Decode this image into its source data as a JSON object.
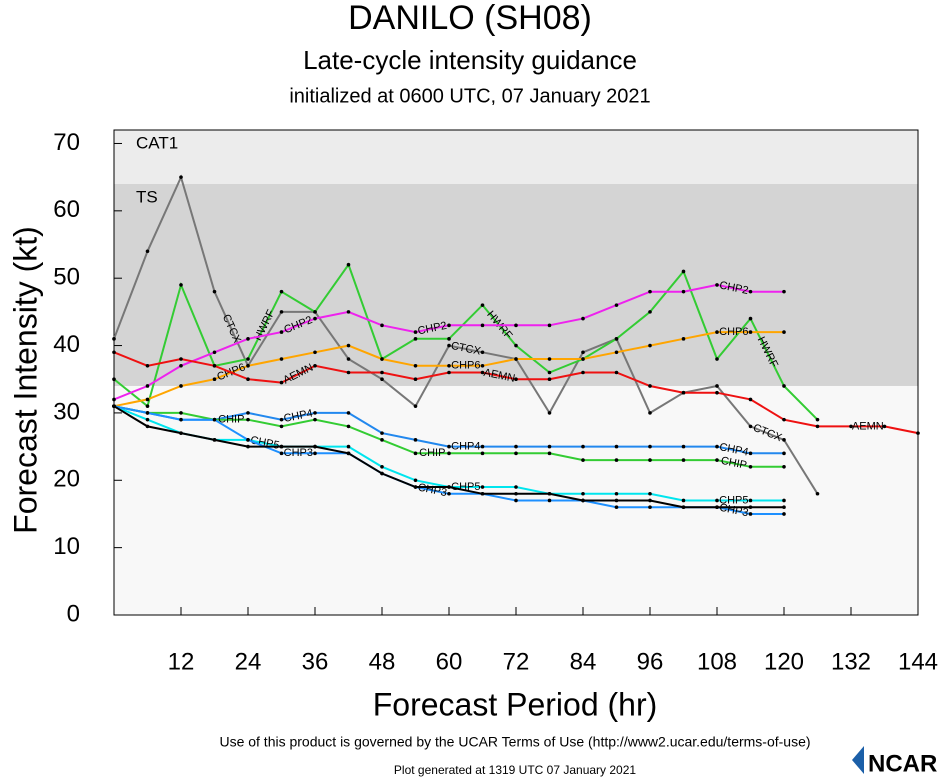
{
  "chart_data": {
    "type": "line",
    "title": "DANILO (SH08)",
    "subtitle": "Late-cycle intensity guidance",
    "initialized": "initialized at 0600 UTC, 07 January 2021",
    "xlabel": "Forecast Period (hr)",
    "ylabel": "Forecast Intensity (kt)",
    "xlim": [
      0,
      144
    ],
    "ylim": [
      0,
      72
    ],
    "xticks": [
      12,
      24,
      36,
      48,
      60,
      72,
      84,
      96,
      108,
      120,
      132,
      144
    ],
    "yticks": [
      0,
      10,
      20,
      30,
      40,
      50,
      60,
      70
    ],
    "bands": [
      {
        "label": "TS",
        "from": 34,
        "to": 64,
        "color": "#d4d4d4"
      },
      {
        "label": "CAT1",
        "from": 64,
        "color": "#ececec"
      }
    ],
    "series": [
      {
        "name": "CTCX",
        "color": "#777777",
        "x": [
          0,
          6,
          12,
          18,
          24,
          30,
          36,
          42,
          48,
          54,
          60,
          66,
          72,
          78,
          84,
          90,
          96,
          102,
          108,
          114,
          120,
          126
        ],
        "values": [
          41,
          54,
          65,
          48,
          37,
          45,
          45,
          38,
          35,
          31,
          40,
          39,
          38,
          30,
          39,
          41,
          30,
          33,
          34,
          28,
          26,
          18
        ]
      },
      {
        "name": "HWRF",
        "color": "#33cc33",
        "x": [
          0,
          6,
          12,
          18,
          24,
          30,
          36,
          42,
          48,
          54,
          60,
          66,
          72,
          78,
          84,
          90,
          96,
          102,
          108,
          114,
          120,
          126
        ],
        "values": [
          35,
          31,
          49,
          37,
          38,
          48,
          45,
          52,
          38,
          41,
          41,
          46,
          40,
          36,
          38,
          41,
          45,
          51,
          38,
          44,
          34,
          29
        ]
      },
      {
        "name": "CHP2",
        "color": "#ee22ee",
        "x": [
          0,
          6,
          12,
          18,
          24,
          30,
          36,
          42,
          48,
          54,
          60,
          66,
          72,
          78,
          84,
          90,
          96,
          102,
          108,
          114,
          120
        ],
        "values": [
          32,
          34,
          37,
          39,
          41,
          42,
          44,
          45,
          43,
          42,
          43,
          43,
          43,
          43,
          44,
          46,
          48,
          48,
          49,
          48,
          48
        ]
      },
      {
        "name": "CHP6",
        "color": "#ffa500",
        "x": [
          0,
          6,
          12,
          18,
          24,
          30,
          36,
          42,
          48,
          54,
          60,
          66,
          72,
          78,
          84,
          90,
          96,
          102,
          108,
          114,
          120
        ],
        "values": [
          31,
          32,
          34,
          35,
          37,
          38,
          39,
          40,
          38,
          37,
          37,
          37,
          38,
          38,
          38,
          39,
          40,
          41,
          42,
          42,
          42
        ]
      },
      {
        "name": "AEMN",
        "color": "#ee1111",
        "x": [
          0,
          6,
          12,
          18,
          24,
          30,
          36,
          42,
          48,
          54,
          60,
          66,
          72,
          78,
          84,
          90,
          96,
          102,
          108,
          114,
          120,
          126,
          132,
          138,
          144
        ],
        "values": [
          39,
          37,
          38,
          37,
          35,
          34.5,
          37,
          36,
          36,
          35,
          36,
          36,
          35,
          35,
          36,
          36,
          34,
          33,
          33,
          32,
          29,
          28,
          28,
          28,
          27
        ]
      },
      {
        "name": "CHP4",
        "color": "#2288ee",
        "x": [
          0,
          6,
          12,
          18,
          24,
          30,
          36,
          42,
          48,
          54,
          60,
          66,
          72,
          78,
          84,
          90,
          96,
          102,
          108,
          114,
          120
        ],
        "values": [
          31,
          30,
          29,
          29,
          30,
          29,
          30,
          30,
          27,
          26,
          25,
          25,
          25,
          25,
          25,
          25,
          25,
          25,
          25,
          24,
          24
        ]
      },
      {
        "name": "CHIP",
        "color": "#33cc33",
        "x": [
          0,
          6,
          12,
          18,
          24,
          30,
          36,
          42,
          48,
          54,
          60,
          66,
          72,
          78,
          84,
          90,
          96,
          102,
          108,
          114,
          120
        ],
        "values": [
          31,
          30,
          30,
          29,
          29,
          28,
          29,
          28,
          26,
          24,
          24,
          24,
          24,
          24,
          23,
          23,
          23,
          23,
          23,
          22,
          22
        ]
      },
      {
        "name": "CHP5",
        "color": "#00e5ee",
        "x": [
          0,
          6,
          12,
          18,
          24,
          30,
          36,
          42,
          48,
          54,
          60,
          66,
          72,
          78,
          84,
          90,
          96,
          102,
          108,
          114,
          120
        ],
        "values": [
          31,
          29,
          27,
          26,
          26,
          25,
          25,
          25,
          22,
          20,
          19,
          19,
          19,
          18,
          18,
          18,
          18,
          17,
          17,
          17,
          17
        ]
      },
      {
        "name": "CHP3",
        "color": "#1e90ff",
        "x": [
          0,
          6,
          12,
          18,
          24,
          30,
          36,
          42,
          48,
          54,
          60,
          66,
          72,
          78,
          84,
          90,
          96,
          102,
          108,
          114,
          120
        ],
        "values": [
          31,
          30,
          29,
          29,
          26,
          24,
          24,
          24,
          21,
          19,
          18,
          18,
          17,
          17,
          17,
          16,
          16,
          16,
          16,
          15,
          15
        ]
      },
      {
        "color": "#000000",
        "x": [
          0,
          6,
          12,
          18,
          24,
          30,
          36,
          42,
          48,
          54,
          60,
          66,
          72,
          78,
          84,
          90,
          96,
          102,
          108,
          114,
          120
        ],
        "values": [
          31,
          28,
          27,
          26,
          25,
          25,
          25,
          24,
          21,
          19,
          19,
          18,
          18,
          18,
          17,
          17,
          17,
          16,
          16,
          16,
          16
        ]
      }
    ],
    "footer": "Use of this product is governed by the UCAR Terms of Use (http://www2.ucar.edu/terms-of-use)",
    "generated": "Plot generated at 1319 UTC   07 January 2021",
    "logo": "NCAR"
  }
}
